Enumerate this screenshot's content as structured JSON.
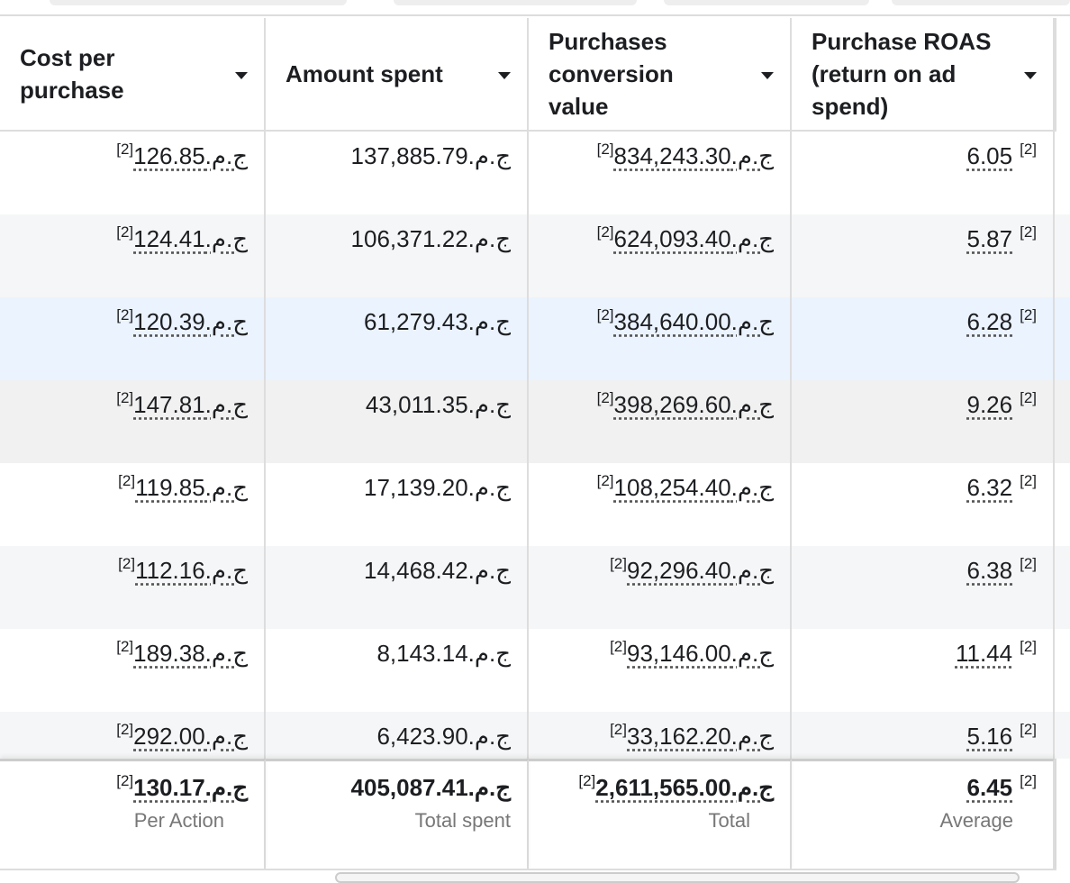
{
  "header": {
    "columns": [
      "Cost per purchase",
      "Amount spent",
      "Purchases conversion value",
      "Purchase ROAS (return on ad spend)"
    ]
  },
  "rows": [
    [
      {
        "value": "ج.م.126.85",
        "note": "[2]"
      },
      {
        "value": "ج.م.137,885.79"
      },
      {
        "value": "ج.م.834,243.30",
        "note": "[2]"
      },
      {
        "value": "6.05",
        "note": "[2]"
      }
    ],
    [
      {
        "value": "ج.م.124.41",
        "note": "[2]"
      },
      {
        "value": "ج.م.106,371.22"
      },
      {
        "value": "ج.م.624,093.40",
        "note": "[2]"
      },
      {
        "value": "5.87",
        "note": "[2]"
      }
    ],
    [
      {
        "value": "ج.م.120.39",
        "note": "[2]"
      },
      {
        "value": "ج.م.61,279.43"
      },
      {
        "value": "ج.م.384,640.00",
        "note": "[2]"
      },
      {
        "value": "6.28",
        "note": "[2]"
      }
    ],
    [
      {
        "value": "ج.م.147.81",
        "note": "[2]"
      },
      {
        "value": "ج.م.43,011.35"
      },
      {
        "value": "ج.م.398,269.60",
        "note": "[2]"
      },
      {
        "value": "9.26",
        "note": "[2]"
      }
    ],
    [
      {
        "value": "ج.م.119.85",
        "note": "[2]"
      },
      {
        "value": "ج.م.17,139.20"
      },
      {
        "value": "ج.م.108,254.40",
        "note": "[2]"
      },
      {
        "value": "6.32",
        "note": "[2]"
      }
    ],
    [
      {
        "value": "ج.م.112.16",
        "note": "[2]"
      },
      {
        "value": "ج.م.14,468.42"
      },
      {
        "value": "ج.م.92,296.40",
        "note": "[2]"
      },
      {
        "value": "6.38",
        "note": "[2]"
      }
    ],
    [
      {
        "value": "ج.م.189.38",
        "note": "[2]"
      },
      {
        "value": "ج.م.8,143.14"
      },
      {
        "value": "ج.م.93,146.00",
        "note": "[2]"
      },
      {
        "value": "11.44",
        "note": "[2]"
      }
    ],
    [
      {
        "value": "ج.م.292.00",
        "note": "[2]"
      },
      {
        "value": "ج.م.6,423.90"
      },
      {
        "value": "ج.م.33,162.20",
        "note": "[2]"
      },
      {
        "value": "5.16",
        "note": "[2]"
      }
    ]
  ],
  "footer": [
    {
      "value": "ج.م.130.17",
      "note": "[2]",
      "caption": "Per Action"
    },
    {
      "value": "ج.م.405,087.41",
      "caption": "Total spent"
    },
    {
      "value": "ج.م.2,611,565.00",
      "note": "[2]",
      "caption": "Total"
    },
    {
      "value": "6.45",
      "note": "[2]",
      "caption": "Average"
    }
  ]
}
